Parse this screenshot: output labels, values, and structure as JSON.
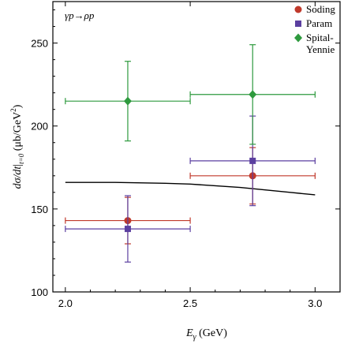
{
  "chart_data": {
    "type": "scatter",
    "annotation": "γp→ρp",
    "xlabel": "E_γ (GeV)",
    "ylabel": "dσ/dt|_{t=0} (μb/GeV²)",
    "xlim": [
      1.95,
      3.1
    ],
    "ylim": [
      100,
      275
    ],
    "xticks": [
      "2.0",
      "2.5",
      "3.0"
    ],
    "yticks": [
      "100",
      "150",
      "200",
      "250"
    ],
    "legend_position": "top-right",
    "series": [
      {
        "name": "Soding",
        "color": "#c0392b",
        "marker": "circle",
        "points": [
          {
            "x": 2.25,
            "xerr": 0.25,
            "y": 143,
            "ylow": 129,
            "yhigh": 157
          },
          {
            "x": 2.75,
            "xerr": 0.25,
            "y": 170,
            "ylow": 153,
            "yhigh": 187
          }
        ]
      },
      {
        "name": "Param",
        "color": "#5b3fa0",
        "marker": "square",
        "points": [
          {
            "x": 2.25,
            "xerr": 0.25,
            "y": 138,
            "ylow": 118,
            "yhigh": 158
          },
          {
            "x": 2.75,
            "xerr": 0.25,
            "y": 179,
            "ylow": 152,
            "yhigh": 206
          }
        ]
      },
      {
        "name": "Spital-Yennie",
        "name_lines": [
          "Spital-",
          "Yennie"
        ],
        "color": "#2e9a3e",
        "marker": "diamond",
        "points": [
          {
            "x": 2.25,
            "xerr": 0.25,
            "y": 215,
            "ylow": 191,
            "yhigh": 239
          },
          {
            "x": 2.75,
            "xerr": 0.25,
            "y": 219,
            "ylow": 189,
            "yhigh": 249
          }
        ]
      }
    ],
    "curve": {
      "color": "#000000",
      "x": [
        2.0,
        2.2,
        2.4,
        2.5,
        2.6,
        2.7,
        2.8,
        2.9,
        3.0
      ],
      "y": [
        166,
        166,
        165.5,
        165,
        164,
        163,
        161.5,
        160,
        158.5
      ]
    }
  }
}
